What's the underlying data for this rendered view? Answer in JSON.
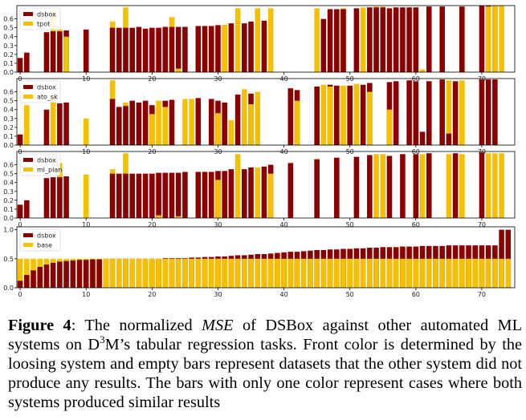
{
  "colors": {
    "dsbox": "#8B0000",
    "other": "#F5C000",
    "axis": "#000000"
  },
  "caption": {
    "label": "Figure 4",
    "sep": ": The normalized ",
    "metric": "MSE",
    "t1": " of DSBox against other automated ML systems on D",
    "sup": "3",
    "t2": "M’s tabular regression tasks. Front color is determined by the loosing system and empty bars represent datasets that the other system did not produce any results. The bars with only one color represent cases where both systems produced similar results"
  },
  "chart_data": [
    {
      "type": "bar",
      "legend": [
        "dsbox",
        "tpot"
      ],
      "legend_position": "top-left",
      "x_ticks": [
        0,
        10,
        20,
        30,
        40,
        50,
        60,
        70
      ],
      "y_ticks": [
        "0.0",
        "0.1",
        "0.2",
        "0.3",
        "0.4",
        "0.5",
        "0.6"
      ],
      "xlim": [
        -0.5,
        75
      ],
      "ylim": [
        0,
        0.75
      ],
      "series": [
        {
          "name": "dsbox",
          "x": [
            0,
            1,
            4,
            5,
            6,
            7,
            10,
            14,
            15,
            16,
            17,
            18,
            19,
            20,
            21,
            22,
            23,
            24,
            25,
            27,
            28,
            29,
            30,
            31,
            32,
            34,
            35,
            37,
            46,
            47,
            48,
            49,
            51,
            53,
            54,
            55,
            56,
            57,
            58,
            59,
            60,
            62,
            64,
            67,
            70,
            71,
            72
          ],
          "values": [
            0.16,
            0.22,
            0.45,
            0.46,
            0.46,
            0.47,
            0.48,
            0.5,
            0.5,
            0.5,
            0.5,
            0.51,
            0.49,
            0.5,
            0.5,
            0.51,
            0.51,
            0.51,
            0.51,
            0.52,
            0.52,
            0.52,
            0.53,
            0.53,
            0.55,
            0.55,
            0.57,
            0.58,
            0.6,
            0.71,
            0.71,
            0.71,
            0.72,
            0.73,
            0.73,
            0.73,
            0.72,
            0.73,
            0.73,
            0.73,
            0.73,
            0.74,
            0.74,
            0.74,
            0.75,
            0.75,
            0.75
          ]
        },
        {
          "name": "tpot",
          "x": [
            5,
            6,
            7,
            14,
            16,
            23,
            24,
            31,
            33,
            36,
            38,
            45,
            49,
            52,
            54,
            55,
            61,
            71,
            72,
            73
          ],
          "values": [
            0.7,
            0.48,
            0.4,
            0.57,
            0.73,
            0.62,
            0.04,
            0.53,
            0.72,
            0.72,
            0.72,
            0.72,
            0.72,
            0.73,
            0.74,
            0.74,
            0.03,
            0.74,
            0.75,
            0.75
          ]
        }
      ]
    },
    {
      "type": "bar",
      "legend": [
        "dsbox",
        "ato_sk"
      ],
      "legend_position": "top-left",
      "x_ticks": [
        0,
        10,
        20,
        30,
        40,
        50,
        60,
        70
      ],
      "y_ticks": [
        "0.0",
        "0.1",
        "0.2",
        "0.3",
        "0.4",
        "0.5",
        "0.6"
      ],
      "xlim": [
        -0.5,
        75
      ],
      "ylim": [
        0,
        0.75
      ],
      "series": [
        {
          "name": "dsbox",
          "x": [
            0,
            4,
            6,
            7,
            14,
            15,
            16,
            17,
            18,
            19,
            20,
            22,
            23,
            27,
            29,
            30,
            31,
            33,
            35,
            41,
            42,
            45,
            47,
            48,
            50,
            52,
            53,
            56,
            57,
            59,
            60,
            61,
            62,
            64,
            65,
            66,
            70,
            71,
            72
          ],
          "values": [
            0.12,
            0.4,
            0.47,
            0.48,
            0.52,
            0.43,
            0.44,
            0.5,
            0.48,
            0.5,
            0.45,
            0.5,
            0.51,
            0.53,
            0.52,
            0.5,
            0.48,
            0.57,
            0.58,
            0.64,
            0.62,
            0.66,
            0.68,
            0.67,
            0.67,
            0.68,
            0.7,
            0.71,
            0.72,
            0.73,
            0.72,
            0.15,
            0.72,
            0.74,
            0.13,
            0.72,
            0.74,
            0.74,
            0.74
          ]
        },
        {
          "name": "ato_sk",
          "x": [
            1,
            5,
            10,
            14,
            16,
            20,
            21,
            22,
            25,
            26,
            30,
            32,
            34,
            35,
            36,
            42,
            46,
            47,
            49,
            51,
            53,
            56,
            65,
            67
          ],
          "values": [
            0.45,
            0.55,
            0.3,
            0.73,
            0.48,
            0.35,
            0.5,
            0.43,
            0.52,
            0.52,
            0.36,
            0.28,
            0.63,
            0.46,
            0.6,
            0.5,
            0.68,
            0.66,
            0.67,
            0.69,
            0.6,
            0.4,
            0.73,
            0.73
          ]
        }
      ]
    },
    {
      "type": "bar",
      "legend": [
        "dsbox",
        "ml_plan"
      ],
      "legend_position": "top-left",
      "x_ticks": [
        0,
        10,
        20,
        30,
        40,
        50,
        60,
        70
      ],
      "y_ticks": [
        "0.0",
        "0.1",
        "0.2",
        "0.3",
        "0.4",
        "0.5",
        "0.6"
      ],
      "xlim": [
        -0.5,
        75
      ],
      "ylim": [
        0,
        0.75
      ],
      "series": [
        {
          "name": "dsbox",
          "x": [
            0,
            1,
            4,
            5,
            6,
            7,
            14,
            15,
            16,
            17,
            18,
            19,
            20,
            21,
            22,
            23,
            24,
            25,
            27,
            28,
            29,
            30,
            31,
            32,
            34,
            35,
            37,
            38,
            41,
            45,
            48,
            51,
            53,
            56,
            58,
            60,
            62,
            66,
            70
          ],
          "values": [
            0.15,
            0.2,
            0.45,
            0.46,
            0.46,
            0.47,
            0.5,
            0.5,
            0.5,
            0.5,
            0.5,
            0.5,
            0.5,
            0.51,
            0.51,
            0.51,
            0.51,
            0.52,
            0.52,
            0.52,
            0.52,
            0.53,
            0.53,
            0.55,
            0.55,
            0.57,
            0.58,
            0.6,
            0.62,
            0.66,
            0.68,
            0.69,
            0.71,
            0.7,
            0.72,
            0.72,
            0.73,
            0.73,
            0.74
          ]
        },
        {
          "name": "ml_plan",
          "x": [
            6,
            10,
            14,
            16,
            21,
            24,
            30,
            33,
            36,
            38,
            45,
            54,
            55,
            61,
            65,
            67,
            71,
            72,
            73
          ],
          "values": [
            0.62,
            0.49,
            0.55,
            0.73,
            0.03,
            0.02,
            0.43,
            0.72,
            0.57,
            0.5,
            0.67,
            0.72,
            0.72,
            0.72,
            0.72,
            0.72,
            0.73,
            0.73,
            0.73
          ]
        }
      ]
    },
    {
      "type": "bar",
      "legend": [
        "dsbox",
        "base"
      ],
      "legend_position": "top-left",
      "x_ticks": [
        0,
        10,
        20,
        30,
        40,
        50,
        60,
        70
      ],
      "y_ticks": [
        "0.0",
        "0.5",
        "1.0"
      ],
      "xlim": [
        -0.5,
        75
      ],
      "ylim": [
        0,
        1.05
      ],
      "series": [
        {
          "name": "dsbox",
          "x": [
            0,
            1,
            2,
            3,
            4,
            5,
            6,
            7,
            8,
            9,
            10,
            11,
            12,
            13,
            14,
            15,
            16,
            17,
            18,
            19,
            20,
            21,
            22,
            23,
            24,
            25,
            26,
            27,
            28,
            29,
            30,
            31,
            32,
            33,
            34,
            35,
            36,
            37,
            38,
            39,
            40,
            41,
            42,
            43,
            44,
            45,
            46,
            47,
            48,
            49,
            50,
            51,
            52,
            53,
            54,
            55,
            56,
            57,
            58,
            59,
            60,
            61,
            62,
            63,
            64,
            65,
            66,
            67,
            68,
            69,
            70,
            71,
            72,
            73,
            74
          ],
          "values": [
            0.12,
            0.22,
            0.3,
            0.36,
            0.4,
            0.43,
            0.45,
            0.46,
            0.47,
            0.48,
            0.48,
            0.49,
            0.49,
            0.5,
            0.5,
            0.5,
            0.5,
            0.5,
            0.5,
            0.5,
            0.5,
            0.5,
            0.51,
            0.51,
            0.51,
            0.51,
            0.52,
            0.52,
            0.53,
            0.53,
            0.54,
            0.54,
            0.55,
            0.56,
            0.56,
            0.57,
            0.58,
            0.58,
            0.59,
            0.6,
            0.61,
            0.62,
            0.62,
            0.63,
            0.64,
            0.65,
            0.65,
            0.66,
            0.66,
            0.67,
            0.67,
            0.68,
            0.68,
            0.69,
            0.69,
            0.7,
            0.7,
            0.7,
            0.71,
            0.71,
            0.71,
            0.72,
            0.72,
            0.72,
            0.72,
            0.73,
            0.73,
            0.73,
            0.73,
            0.73,
            0.73,
            0.73,
            0.73,
            1.0,
            1.0
          ]
        },
        {
          "name": "base",
          "x": [
            0,
            1,
            2,
            3,
            4,
            5,
            6,
            7,
            8,
            9,
            10,
            11,
            12,
            13,
            14,
            15,
            16,
            17,
            18,
            19,
            20,
            21,
            22,
            23,
            24,
            25,
            26,
            27,
            28,
            29,
            30,
            31,
            32,
            33,
            34,
            35,
            36,
            37,
            38,
            39,
            40,
            41,
            42,
            43,
            44,
            45,
            46,
            47,
            48,
            49,
            50,
            51,
            52,
            53,
            54,
            55,
            56,
            57,
            58,
            59,
            60,
            61,
            62,
            63,
            64,
            65,
            66,
            67,
            68,
            69,
            70,
            71,
            72,
            73,
            74
          ],
          "values": [
            0.5,
            0.5,
            0.5,
            0.5,
            0.5,
            0.5,
            0.5,
            0.5,
            0.5,
            0.5,
            0.5,
            0.5,
            0.5,
            0.5,
            0.5,
            0.5,
            0.5,
            0.5,
            0.5,
            0.5,
            0.5,
            0.5,
            0.5,
            0.5,
            0.5,
            0.5,
            0.5,
            0.5,
            0.5,
            0.5,
            0.5,
            0.5,
            0.5,
            0.5,
            0.5,
            0.5,
            0.5,
            0.5,
            0.5,
            0.5,
            0.5,
            0.5,
            0.5,
            0.5,
            0.5,
            0.5,
            0.5,
            0.5,
            0.5,
            0.5,
            0.5,
            0.5,
            0.5,
            0.5,
            0.5,
            0.5,
            0.5,
            0.5,
            0.5,
            0.5,
            0.5,
            0.5,
            0.5,
            0.5,
            0.5,
            0.5,
            0.5,
            0.5,
            0.5,
            0.5,
            0.5,
            0.5,
            0.5,
            0.5,
            0.5
          ]
        }
      ]
    }
  ]
}
